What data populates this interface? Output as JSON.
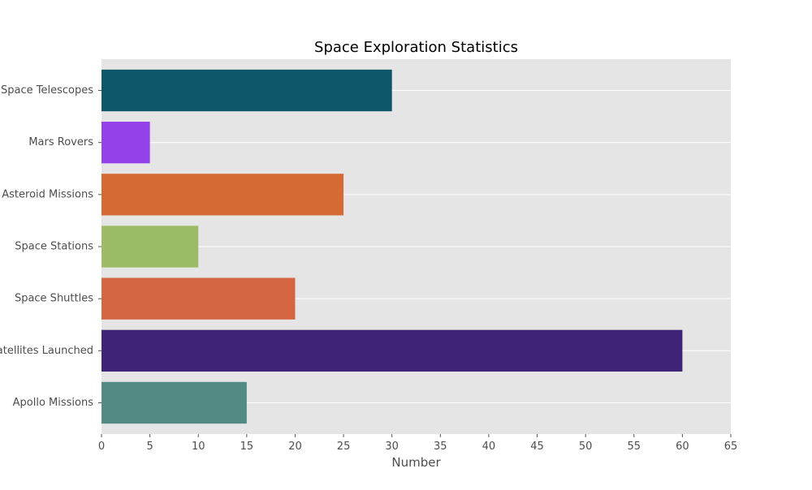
{
  "chart_data": {
    "type": "bar",
    "orientation": "horizontal",
    "title": "Space Exploration Statistics",
    "xlabel": "Number",
    "ylabel": "",
    "categories": [
      "Apollo Missions",
      "Satellites Launched",
      "Space Shuttles",
      "Space Stations",
      "Asteroid Missions",
      "Mars Rovers",
      "Space Telescopes"
    ],
    "values": [
      15,
      60,
      20,
      10,
      25,
      5,
      30
    ],
    "colors": [
      "#528b83",
      "#3e2377",
      "#d46543",
      "#9bbb66",
      "#d66a35",
      "#9342ea",
      "#0e5669"
    ],
    "xlim": [
      0,
      65
    ],
    "xticks": [
      0,
      5,
      10,
      15,
      20,
      25,
      30,
      35,
      40,
      45,
      50,
      55,
      60,
      65
    ],
    "grid": true,
    "plot_background": "#e5e5e5",
    "grid_color": "#ffffff"
  }
}
